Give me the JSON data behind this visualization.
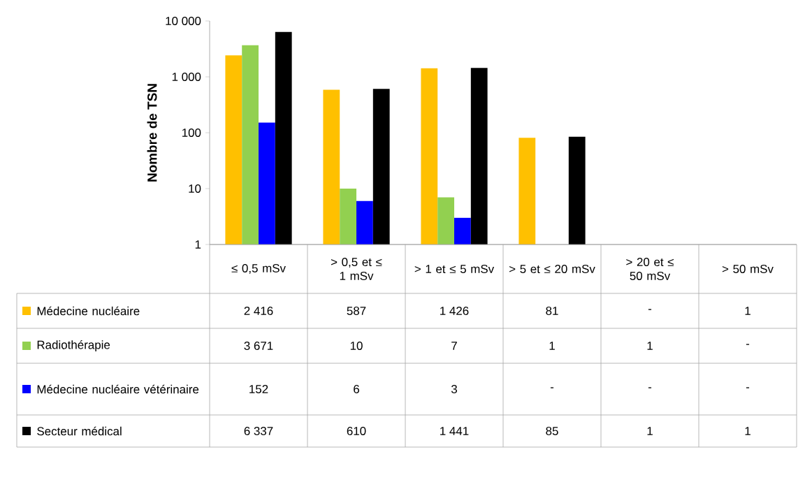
{
  "chart_data": {
    "type": "bar",
    "ylabel": "Nombre de TSN",
    "log": "y",
    "ylim": [
      1,
      10000
    ],
    "yticks": [
      1,
      10,
      100,
      {
        "value": 1000,
        "label": "1 000"
      },
      {
        "value": 10000,
        "label": "10 000"
      }
    ],
    "categories": [
      "≤ 0,5 mSv",
      "> 0,5 et ≤ 1 mSv",
      "> 1 et ≤ 5 mSv",
      "> 5 et ≤ 20 mSv",
      "> 20 et ≤ 50 mSv",
      "> 50 mSv"
    ],
    "legend": "bottom left",
    "series": [
      {
        "name": "Médecine nucléaire",
        "color": "#ffc000",
        "values": [
          2416,
          587,
          1426,
          81,
          null,
          1
        ],
        "value_labels": [
          "2 416",
          "587",
          "1 426",
          "81",
          "-",
          "1"
        ]
      },
      {
        "name": "Radiothérapie",
        "color": "#92d050",
        "values": [
          3671,
          10,
          7,
          1,
          1,
          null
        ],
        "value_labels": [
          "3 671",
          "10",
          "7",
          "1",
          "1",
          "-"
        ]
      },
      {
        "name": "Médecine nucléaire vétérinaire",
        "color": "#0000ff",
        "values": [
          152,
          6,
          3,
          null,
          null,
          null
        ],
        "value_labels": [
          "152",
          "6",
          "3",
          "-",
          "-",
          "-"
        ]
      },
      {
        "name": "Secteur médical",
        "color": "#000000",
        "values": [
          6337,
          610,
          1441,
          85,
          1,
          1
        ],
        "value_labels": [
          "6 337",
          "610",
          "1 441",
          "85",
          "1",
          "1"
        ]
      }
    ]
  }
}
